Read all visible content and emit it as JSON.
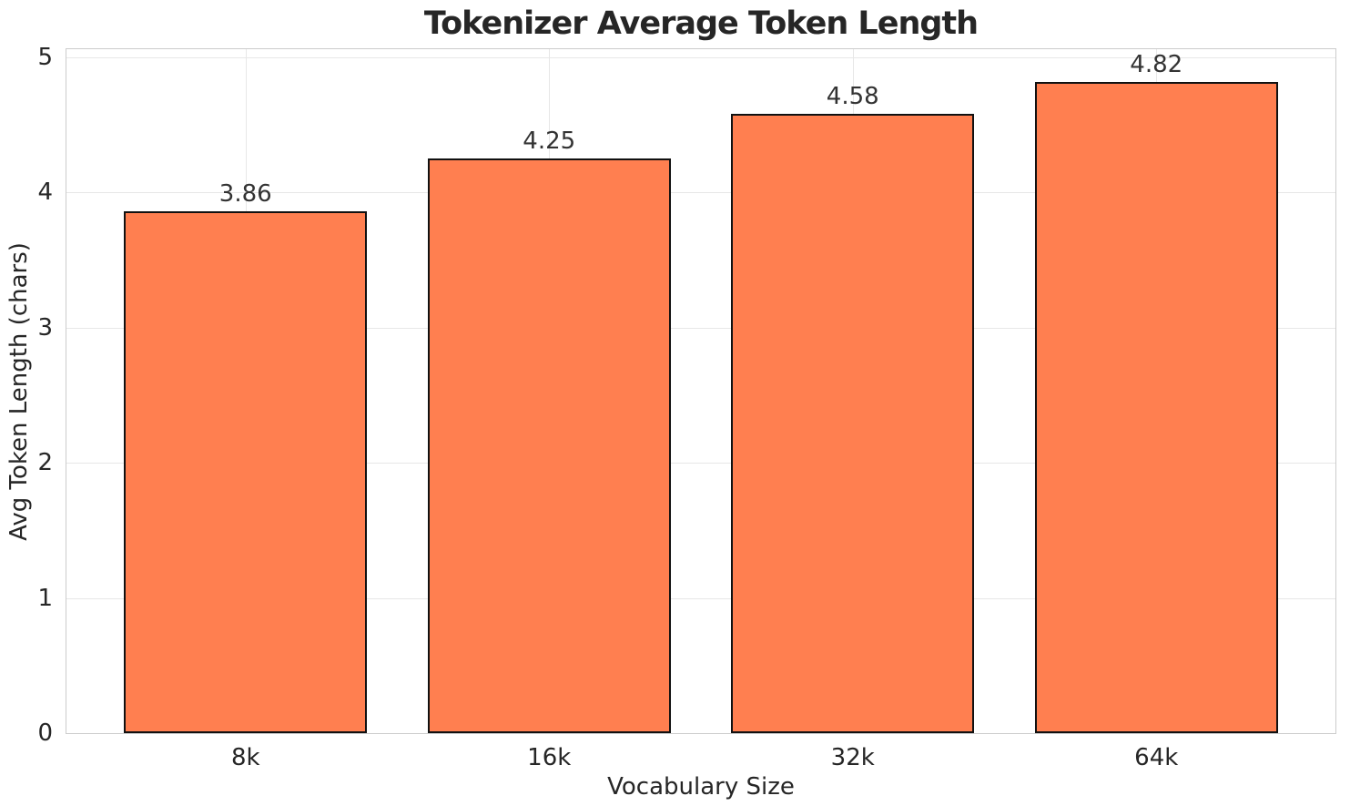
{
  "figure": {
    "title": "Tokenizer Average Token Length"
  },
  "chart_data": {
    "type": "bar",
    "title": "Tokenizer Average Token Length",
    "categories": [
      "8k",
      "16k",
      "32k",
      "64k"
    ],
    "values": [
      3.86,
      4.25,
      4.58,
      4.82
    ],
    "value_labels": [
      "3.86",
      "4.25",
      "4.58",
      "4.82"
    ],
    "xlabel": "Vocabulary Size",
    "ylabel": "Avg Token Length (chars)",
    "xlim": [
      -0.59,
      3.59
    ],
    "ylim": [
      0,
      5.06
    ],
    "yticks": [
      0,
      1,
      2,
      3,
      4,
      5
    ],
    "bar_width": 0.8,
    "grid": true,
    "legend": null,
    "colors": {
      "bar_fill": "#FF7F50",
      "bar_edge": "#111111",
      "grid": "#e7e7e7",
      "spine": "#cccccc",
      "text": "#262626",
      "background": "#ffffff"
    }
  }
}
